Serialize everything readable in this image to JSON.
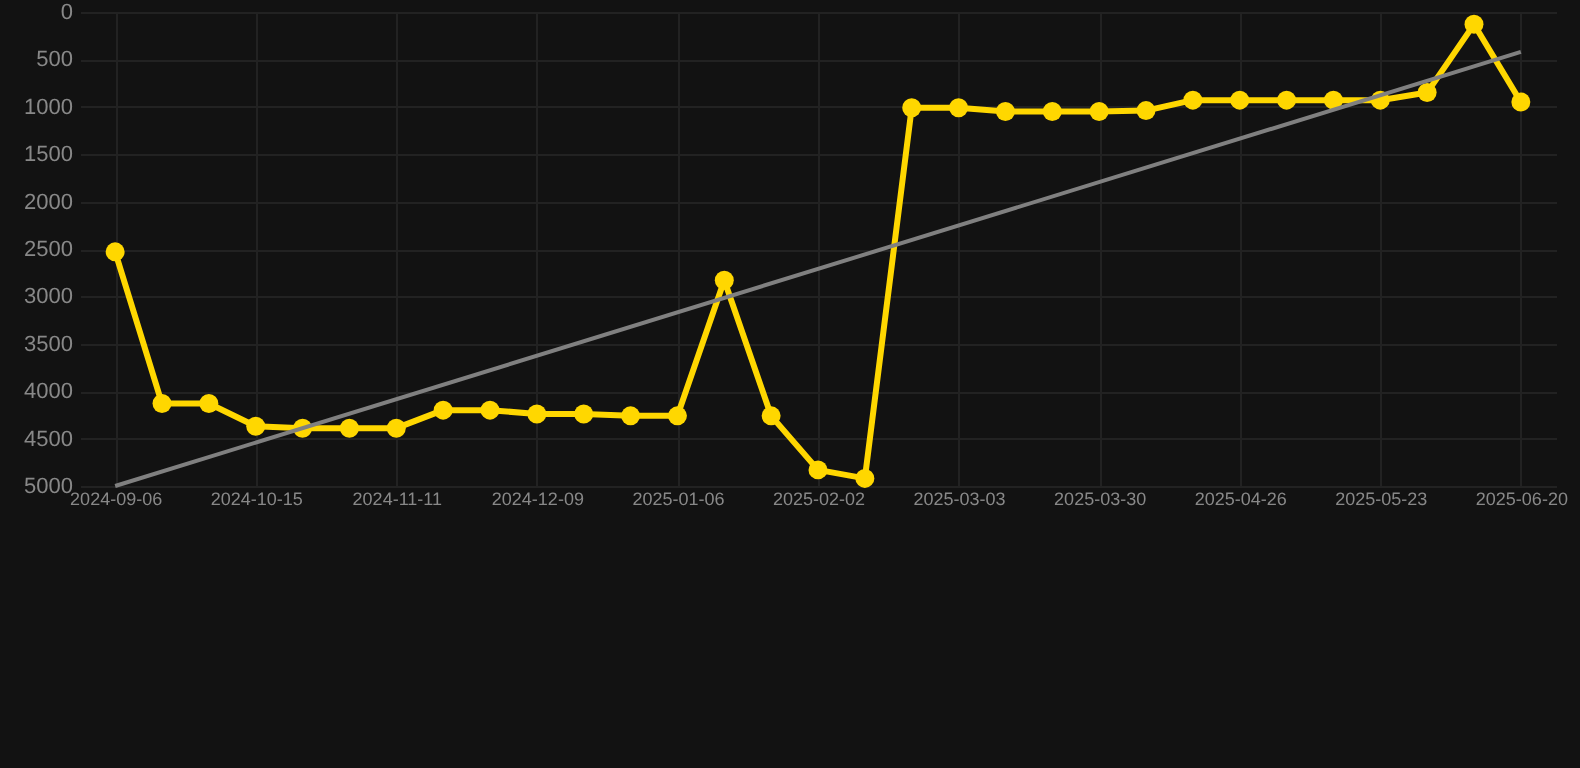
{
  "chart_data": {
    "type": "line",
    "categories": [
      "2024-09-06",
      null,
      null,
      "2024-10-15",
      null,
      null,
      "2024-11-11",
      null,
      null,
      "2024-12-09",
      null,
      null,
      "2025-01-06",
      null,
      null,
      "2025-02-02",
      null,
      null,
      "2025-03-03",
      null,
      null,
      "2025-03-30",
      null,
      null,
      "2025-04-26",
      null,
      null,
      "2025-05-23",
      null,
      null,
      "2025-06-20"
    ],
    "series": [
      {
        "color": "#ffd700",
        "values": [
          2530,
          4130,
          4130,
          4370,
          4390,
          4390,
          4390,
          4200,
          4200,
          4240,
          4240,
          4260,
          4260,
          2830,
          4260,
          4830,
          4920,
          1010,
          1010,
          1050,
          1050,
          1050,
          1040,
          930,
          930,
          930,
          930,
          930,
          850,
          130,
          950
        ]
      },
      {
        "color": "#808080",
        "marker": "none",
        "values": [
          5000,
          null,
          null,
          null,
          null,
          null,
          null,
          null,
          null,
          null,
          null,
          null,
          null,
          null,
          null,
          null,
          null,
          null,
          null,
          null,
          null,
          null,
          null,
          null,
          null,
          null,
          null,
          null,
          null,
          null,
          420
        ]
      }
    ],
    "ylim": [
      5000,
      0
    ],
    "yticks": [
      0,
      500,
      1000,
      1500,
      2000,
      2500,
      3000,
      3500,
      4000,
      4500,
      5000
    ],
    "grid": true,
    "marker": "circle",
    "line_style": "solid"
  }
}
